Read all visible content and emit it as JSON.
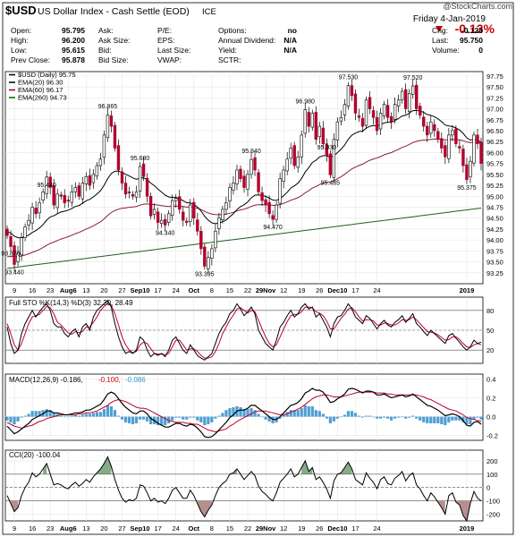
{
  "header": {
    "symbol": "$USD",
    "name": "US Dollar Index - Cash Settle (EOD)",
    "exchange": "ICE",
    "watermark": "@StockCharts.com",
    "date": "Friday 4-Jan-2019",
    "pct_change": "-0.13%",
    "rows": [
      [
        [
          "Open:",
          "95.795"
        ],
        [
          "Ask:",
          ""
        ],
        [
          "P/E:",
          ""
        ],
        [
          "Options:",
          "no"
        ],
        [
          "Chg:",
          "-0.128"
        ]
      ],
      [
        [
          "High:",
          "96.200"
        ],
        [
          "Ask Size:",
          ""
        ],
        [
          "EPS:",
          ""
        ],
        [
          "Annual Dividend:",
          "N/A"
        ],
        [
          "Last:",
          "95.750"
        ]
      ],
      [
        [
          "Low:",
          "95.615"
        ],
        [
          "Bid:",
          ""
        ],
        [
          "Last Size:",
          ""
        ],
        [
          "Yield:",
          "N/A"
        ],
        [
          "Volume:",
          "0"
        ]
      ],
      [
        [
          "Prev Close:",
          "95.878"
        ],
        [
          "Bid Size:",
          ""
        ],
        [
          "VWAP:",
          ""
        ],
        [
          "SCTR:",
          ""
        ],
        [
          "",
          ""
        ]
      ]
    ]
  },
  "chart_data": [
    {
      "type": "candlestick",
      "legend": [
        {
          "label": "$USD (Daily) 95.75",
          "color": "#000000"
        },
        {
          "label": "EMA(20) 96.30",
          "color": "#000000"
        },
        {
          "label": "EMA(60) 96.17",
          "color": "#8b0000"
        },
        {
          "label": "EMA(260) 94.73",
          "color": "#006400"
        }
      ],
      "ylim": [
        93.0,
        97.85
      ],
      "y_ticks": [
        "93.25",
        "93.50",
        "93.75",
        "94.00",
        "94.25",
        "94.50",
        "94.75",
        "95.00",
        "95.25",
        "95.50",
        "95.75",
        "96.00",
        "96.25",
        "96.50",
        "96.75",
        "97.00",
        "97.25",
        "97.50",
        "97.75"
      ],
      "x_ticks": [
        "9",
        "16",
        "23",
        "Aug6",
        "13",
        "20",
        "27",
        "Sep10",
        "17",
        "24",
        "Oct",
        "8",
        "15",
        "22",
        "29Nov",
        "12",
        "19",
        "26",
        "Dec10",
        "17",
        "24",
        "2019"
      ],
      "closes": [
        94.1,
        93.85,
        93.44,
        93.7,
        94.05,
        94.3,
        94.45,
        94.75,
        94.6,
        94.85,
        95.1,
        95.44,
        95.2,
        94.8,
        95.05,
        95.0,
        94.85,
        94.9,
        95.1,
        95.2,
        95.0,
        95.3,
        95.45,
        95.25,
        95.5,
        95.7,
        95.85,
        96.4,
        96.86,
        96.6,
        96.1,
        95.6,
        95.3,
        95.05,
        95.1,
        95.0,
        95.1,
        95.68,
        95.45,
        95.0,
        94.55,
        94.7,
        94.4,
        94.45,
        94.34,
        94.6,
        94.9,
        94.95,
        94.7,
        94.45,
        94.4,
        94.8,
        94.5,
        94.2,
        93.8,
        93.4,
        93.6,
        93.8,
        94.2,
        94.5,
        94.7,
        94.85,
        95.2,
        95.3,
        95.6,
        95.4,
        95.2,
        95.5,
        95.84,
        95.6,
        95.1,
        94.9,
        94.8,
        94.6,
        94.47,
        94.8,
        95.4,
        95.6,
        95.85,
        96.1,
        95.7,
        95.9,
        96.4,
        96.98,
        96.6,
        96.9,
        96.3,
        96.6,
        96.2,
        95.93,
        95.49,
        96.3,
        96.7,
        96.8,
        97.1,
        97.53,
        97.3,
        96.9,
        96.8,
        96.6,
        97.2,
        97.0,
        96.8,
        96.5,
        96.9,
        97.1,
        96.8,
        96.7,
        97.1,
        97.2,
        97.4,
        97.0,
        97.35,
        97.52,
        97.0,
        96.85,
        96.6,
        96.4,
        96.7,
        96.5,
        96.3,
        96.1,
        95.9,
        96.4,
        96.5,
        96.2,
        96.1,
        95.7,
        95.38,
        95.8,
        96.4,
        96.2,
        95.75
      ],
      "annotations": [
        {
          "text": "93.440",
          "x": "9"
        },
        {
          "text": "95.440",
          "x": "16"
        },
        {
          "text": "93.870",
          "x": "23"
        },
        {
          "text": "96.865",
          "x": "13"
        },
        {
          "text": "95.680",
          "x": "Sep10"
        },
        {
          "text": "94.340",
          "x": "Sep10"
        },
        {
          "text": "93.395",
          "x": "24"
        },
        {
          "text": "95.840",
          "x": "Oct"
        },
        {
          "text": "94.470",
          "x": "22"
        },
        {
          "text": "96.980",
          "x": "29Nov"
        },
        {
          "text": "95.485",
          "x": "12"
        },
        {
          "text": "97.530",
          "x": "12"
        },
        {
          "text": "95.930",
          "x": "26"
        },
        {
          "text": "97.520",
          "x": "17"
        },
        {
          "text": "95.375",
          "x": "2019"
        }
      ],
      "grid": true
    },
    {
      "type": "line",
      "legend": [
        {
          "label": "Full STO %K(14,3) %D(3) 32.30, 28.49",
          "color": "#000000"
        }
      ],
      "ylim": [
        0,
        100
      ],
      "y_ticks": [
        "80",
        "50",
        "20"
      ],
      "k": [
        55,
        30,
        15,
        20,
        45,
        60,
        70,
        80,
        70,
        78,
        85,
        90,
        80,
        60,
        55,
        55,
        45,
        40,
        48,
        52,
        40,
        55,
        60,
        50,
        70,
        80,
        85,
        90,
        95,
        85,
        60,
        40,
        25,
        15,
        18,
        15,
        20,
        40,
        35,
        20,
        10,
        15,
        12,
        15,
        10,
        20,
        35,
        40,
        30,
        20,
        15,
        28,
        20,
        12,
        8,
        5,
        10,
        15,
        30,
        45,
        55,
        62,
        75,
        80,
        90,
        82,
        72,
        78,
        85,
        75,
        50,
        40,
        30,
        25,
        20,
        35,
        55,
        62,
        72,
        80,
        70,
        75,
        85,
        90,
        82,
        85,
        70,
        75,
        65,
        55,
        40,
        60,
        70,
        72,
        80,
        90,
        82,
        70,
        65,
        60,
        72,
        68,
        60,
        52,
        60,
        65,
        58,
        55,
        62,
        66,
        72,
        62,
        68,
        75,
        60,
        55,
        48,
        42,
        50,
        45,
        40,
        35,
        30,
        42,
        45,
        38,
        32,
        25,
        20,
        25,
        35,
        30,
        32
      ],
      "d": [
        60,
        45,
        28,
        20,
        30,
        45,
        60,
        70,
        72,
        74,
        80,
        86,
        84,
        75,
        62,
        58,
        52,
        46,
        44,
        48,
        46,
        48,
        55,
        55,
        62,
        70,
        80,
        86,
        90,
        88,
        75,
        58,
        40,
        28,
        20,
        16,
        18,
        28,
        32,
        30,
        22,
        15,
        14,
        14,
        13,
        15,
        25,
        35,
        35,
        28,
        20,
        22,
        22,
        18,
        12,
        8,
        8,
        10,
        18,
        30,
        45,
        55,
        65,
        73,
        82,
        84,
        80,
        76,
        80,
        78,
        65,
        52,
        40,
        30,
        25,
        28,
        40,
        52,
        63,
        72,
        74,
        74,
        78,
        85,
        85,
        84,
        78,
        76,
        72,
        64,
        52,
        52,
        60,
        68,
        74,
        82,
        84,
        78,
        70,
        64,
        66,
        66,
        64,
        58,
        58,
        61,
        60,
        58,
        58,
        61,
        66,
        65,
        66,
        70,
        66,
        60,
        54,
        48,
        47,
        46,
        43,
        39,
        35,
        36,
        40,
        40,
        36,
        30,
        25,
        24,
        28,
        30,
        28
      ]
    },
    {
      "type": "line",
      "legend": [
        {
          "label": "MACD(12,26,9) -0.186",
          "color": "#000000"
        },
        {
          "label": "-0.100",
          "color": "#cc0000"
        },
        {
          "label": "-0.086",
          "color": "#3399cc"
        }
      ],
      "ylim": [
        -0.25,
        0.45
      ],
      "y_ticks": [
        "0.4",
        "0.2",
        "0.0",
        "-0.2"
      ],
      "macd": [
        -0.1,
        -0.14,
        -0.18,
        -0.16,
        -0.13,
        -0.1,
        -0.07,
        -0.03,
        -0.01,
        0.01,
        0.03,
        0.06,
        0.06,
        0.04,
        0.04,
        0.03,
        0.02,
        0.02,
        0.03,
        0.04,
        0.04,
        0.05,
        0.07,
        0.07,
        0.09,
        0.11,
        0.13,
        0.18,
        0.24,
        0.26,
        0.24,
        0.19,
        0.14,
        0.1,
        0.07,
        0.04,
        0.03,
        0.06,
        0.06,
        0.03,
        -0.02,
        -0.04,
        -0.07,
        -0.09,
        -0.11,
        -0.11,
        -0.09,
        -0.07,
        -0.07,
        -0.09,
        -0.1,
        -0.08,
        -0.09,
        -0.12,
        -0.16,
        -0.21,
        -0.22,
        -0.21,
        -0.18,
        -0.14,
        -0.1,
        -0.06,
        -0.01,
        0.02,
        0.06,
        0.07,
        0.07,
        0.09,
        0.12,
        0.12,
        0.09,
        0.06,
        0.03,
        0.0,
        -0.03,
        -0.03,
        0.0,
        0.04,
        0.08,
        0.12,
        0.13,
        0.15,
        0.19,
        0.25,
        0.27,
        0.3,
        0.28,
        0.28,
        0.26,
        0.21,
        0.15,
        0.16,
        0.19,
        0.21,
        0.24,
        0.29,
        0.3,
        0.29,
        0.27,
        0.25,
        0.27,
        0.27,
        0.26,
        0.23,
        0.23,
        0.24,
        0.22,
        0.2,
        0.21,
        0.22,
        0.23,
        0.21,
        0.22,
        0.24,
        0.21,
        0.18,
        0.15,
        0.12,
        0.11,
        0.09,
        0.07,
        0.04,
        0.01,
        0.02,
        0.03,
        0.02,
        0.0,
        -0.04,
        -0.09,
        -0.1,
        -0.06,
        -0.05,
        -0.08
      ],
      "signal": [
        -0.06,
        -0.08,
        -0.1,
        -0.11,
        -0.12,
        -0.11,
        -0.1,
        -0.09,
        -0.07,
        -0.05,
        -0.04,
        -0.02,
        -0.01,
        0.0,
        0.01,
        0.02,
        0.02,
        0.02,
        0.02,
        0.02,
        0.03,
        0.03,
        0.04,
        0.04,
        0.05,
        0.06,
        0.08,
        0.1,
        0.12,
        0.15,
        0.17,
        0.18,
        0.17,
        0.16,
        0.14,
        0.12,
        0.1,
        0.09,
        0.09,
        0.08,
        0.06,
        0.04,
        0.02,
        0.0,
        -0.02,
        -0.04,
        -0.05,
        -0.06,
        -0.06,
        -0.06,
        -0.07,
        -0.07,
        -0.08,
        -0.08,
        -0.1,
        -0.12,
        -0.14,
        -0.15,
        -0.16,
        -0.15,
        -0.14,
        -0.13,
        -0.1,
        -0.08,
        -0.05,
        -0.03,
        -0.01,
        0.01,
        0.03,
        0.05,
        0.06,
        0.06,
        0.06,
        0.05,
        0.04,
        0.03,
        0.02,
        0.02,
        0.03,
        0.05,
        0.06,
        0.08,
        0.1,
        0.13,
        0.16,
        0.19,
        0.21,
        0.22,
        0.23,
        0.23,
        0.22,
        0.21,
        0.21,
        0.21,
        0.22,
        0.23,
        0.24,
        0.25,
        0.26,
        0.26,
        0.26,
        0.26,
        0.26,
        0.25,
        0.25,
        0.25,
        0.24,
        0.24,
        0.23,
        0.23,
        0.23,
        0.23,
        0.23,
        0.23,
        0.23,
        0.22,
        0.21,
        0.19,
        0.18,
        0.16,
        0.14,
        0.12,
        0.1,
        0.08,
        0.07,
        0.06,
        0.04,
        0.02,
        -0.01,
        -0.02,
        -0.03,
        -0.04,
        -0.05
      ]
    },
    {
      "type": "line",
      "legend": [
        {
          "label": "CCI(20) -100.04",
          "color": "#000000"
        }
      ],
      "ylim": [
        -250,
        280
      ],
      "y_ticks": [
        "200",
        "100",
        "0",
        "-100",
        "-200"
      ],
      "cci": [
        -60,
        -120,
        -180,
        -150,
        -60,
        0,
        40,
        110,
        80,
        100,
        140,
        180,
        100,
        20,
        30,
        20,
        0,
        -10,
        20,
        40,
        10,
        30,
        60,
        40,
        80,
        110,
        140,
        180,
        230,
        160,
        60,
        -20,
        -80,
        -110,
        -90,
        -100,
        -80,
        20,
        10,
        -40,
        -100,
        -80,
        -110,
        -100,
        -120,
        -80,
        -20,
        0,
        -40,
        -80,
        -80,
        -20,
        -60,
        -120,
        -180,
        -220,
        -170,
        -130,
        -60,
        0,
        30,
        50,
        100,
        110,
        140,
        100,
        60,
        90,
        120,
        90,
        10,
        -30,
        -50,
        -80,
        -100,
        -40,
        40,
        70,
        100,
        140,
        80,
        100,
        150,
        200,
        120,
        150,
        60,
        80,
        40,
        -10,
        -80,
        50,
        100,
        110,
        150,
        190,
        140,
        60,
        40,
        20,
        110,
        70,
        40,
        -10,
        60,
        80,
        30,
        20,
        70,
        90,
        120,
        50,
        90,
        110,
        20,
        -10,
        -60,
        -100,
        -40,
        -70,
        -110,
        -150,
        -200,
        -60,
        -40,
        -110,
        -130,
        -210,
        -250,
        -120,
        -30,
        -80,
        -100
      ]
    }
  ]
}
